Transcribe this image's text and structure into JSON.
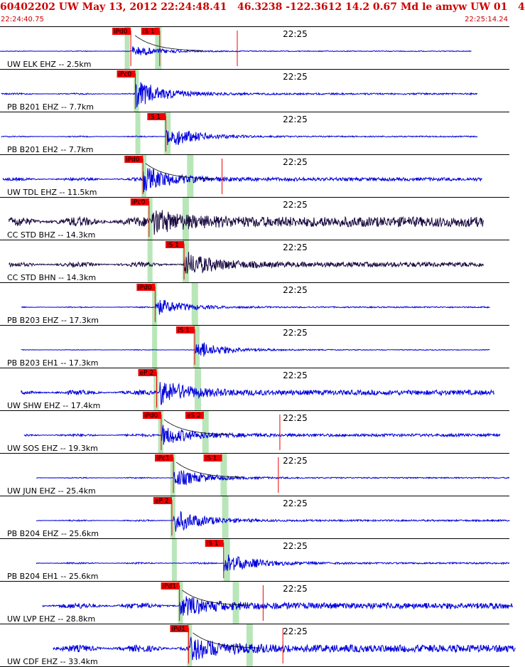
{
  "header": {
    "title": "60402202 UW May 13, 2012 22:24:48.41   46.3238 -122.3612 14.2 0.67 Md le amyw UW 01   4",
    "time_start": "22:24:40.75",
    "time_end": "22:25:14.24"
  },
  "colors": {
    "title": "#cc0000",
    "trace": "#0000dd",
    "trace_dark": "#1a0a40",
    "pick_box": "#ee0000",
    "window": "#b8e6b8",
    "separator": "#000000",
    "decay": "#000000"
  },
  "chart_data": {
    "type": "seismogram",
    "time_label": "22:25",
    "traces": [
      {
        "label": "UW ELK EHZ -- 2.5km",
        "dark": false,
        "trace_start_s": 0.0,
        "trace_end_s": 31.0,
        "p_window_s": 8.2,
        "s_window_s": 10.2,
        "wave_start_s": 8.7,
        "amplitude": 0.25,
        "background": 0.02,
        "picks": [
          {
            "label": "iPd0",
            "time_s": 8.6
          },
          {
            "label": "iS 1",
            "time_s": 10.5
          }
        ],
        "vertical_lines": [
          8.6,
          10.5,
          15.6
        ],
        "decay_curve": true
      },
      {
        "label": "PB B201 EHZ -- 7.7km",
        "dark": false,
        "trace_start_s": 0.1,
        "trace_end_s": 31.4,
        "p_window_s": 8.8,
        "s_window_s": null,
        "wave_start_s": 8.9,
        "amplitude": 0.6,
        "background": 0.04,
        "picks": [
          {
            "label": "iPc0",
            "time_s": 8.9
          }
        ],
        "vertical_lines": [
          8.9
        ],
        "decay_curve": false
      },
      {
        "label": "PB B201 EH2 -- 7.7km",
        "dark": false,
        "trace_start_s": 0.1,
        "trace_end_s": 31.4,
        "p_window_s": 8.9,
        "s_window_s": 10.8,
        "wave_start_s": 10.9,
        "amplitude": 0.55,
        "background": 0.03,
        "picks": [
          {
            "label": "iS 1",
            "time_s": 10.9
          }
        ],
        "vertical_lines": [
          10.9
        ],
        "decay_curve": false
      },
      {
        "label": "UW TDL EHZ -- 11.5km",
        "dark": false,
        "trace_start_s": 0.2,
        "trace_end_s": 31.7,
        "p_window_s": 9.3,
        "s_window_s": 12.3,
        "wave_start_s": 9.4,
        "amplitude": 0.55,
        "background": 0.08,
        "picks": [
          {
            "label": "iPd0",
            "time_s": 9.4
          }
        ],
        "vertical_lines": [
          9.4,
          14.6
        ],
        "decay_curve": true
      },
      {
        "label": "CC STD BHZ -- 14.3km",
        "dark": true,
        "trace_start_s": 0.6,
        "trace_end_s": 31.8,
        "p_window_s": 9.7,
        "s_window_s": 12.0,
        "wave_start_s": 10.0,
        "amplitude": 0.45,
        "background": 0.25,
        "picks": [
          {
            "label": "iPc0",
            "time_s": 9.8
          }
        ],
        "vertical_lines": [
          9.8
        ],
        "decay_curve": false
      },
      {
        "label": "CC STD BHN -- 14.3km",
        "dark": true,
        "trace_start_s": 0.6,
        "trace_end_s": 31.8,
        "p_window_s": 9.7,
        "s_window_s": 12.0,
        "wave_start_s": 12.1,
        "amplitude": 0.55,
        "background": 0.12,
        "picks": [
          {
            "label": "iS 1",
            "time_s": 12.1
          }
        ],
        "vertical_lines": [
          12.1
        ],
        "decay_curve": false
      },
      {
        "label": "PB B203 EHZ -- 17.3km",
        "dark": false,
        "trace_start_s": 1.4,
        "trace_end_s": 32.2,
        "p_window_s": 10.0,
        "s_window_s": 12.6,
        "wave_start_s": 10.2,
        "amplitude": 0.4,
        "background": 0.03,
        "picks": [
          {
            "label": "iPd0",
            "time_s": 10.2
          }
        ],
        "vertical_lines": [
          10.2
        ],
        "decay_curve": false
      },
      {
        "label": "PB B203 EH1 -- 17.3km",
        "dark": false,
        "trace_start_s": 1.4,
        "trace_end_s": 32.2,
        "p_window_s": 10.0,
        "s_window_s": 12.7,
        "wave_start_s": 12.8,
        "amplitude": 0.45,
        "background": 0.02,
        "picks": [
          {
            "label": "iS 1",
            "time_s": 12.8
          }
        ],
        "vertical_lines": [
          12.8
        ],
        "decay_curve": false
      },
      {
        "label": "UW SHW EHZ -- 17.4km",
        "dark": false,
        "trace_start_s": 1.4,
        "trace_end_s": 32.5,
        "p_window_s": 10.1,
        "s_window_s": 12.8,
        "wave_start_s": 10.5,
        "amplitude": 0.55,
        "background": 0.12,
        "picks": [
          {
            "label": "eP 2",
            "time_s": 10.3
          }
        ],
        "vertical_lines": [
          10.3
        ],
        "decay_curve": false
      },
      {
        "label": "UW SOS EHZ -- 19.3km",
        "dark": false,
        "trace_start_s": 1.6,
        "trace_end_s": 32.9,
        "p_window_s": 10.4,
        "s_window_s": 13.3,
        "wave_start_s": 10.6,
        "amplitude": 0.45,
        "background": 0.07,
        "picks": [
          {
            "label": "iPd0",
            "time_s": 10.6
          },
          {
            "label": "eS 2",
            "time_s": 13.4
          }
        ],
        "vertical_lines": [
          10.6,
          18.4
        ],
        "decay_curve": true
      },
      {
        "label": "UW JUN EHZ -- 25.4km",
        "dark": false,
        "trace_start_s": 2.4,
        "trace_end_s": 33.5,
        "p_window_s": 11.2,
        "s_window_s": 14.5,
        "wave_start_s": 11.4,
        "amplitude": 0.45,
        "background": 0.03,
        "picks": [
          {
            "label": "iPc1",
            "time_s": 11.4
          },
          {
            "label": "iS 1",
            "time_s": 14.6
          }
        ],
        "vertical_lines": [
          11.4,
          18.3
        ],
        "decay_curve": true
      },
      {
        "label": "PB B204 EHZ -- 25.6km",
        "dark": false,
        "trace_start_s": 2.4,
        "trace_end_s": 33.5,
        "p_window_s": 11.2,
        "s_window_s": 14.6,
        "wave_start_s": 11.4,
        "amplitude": 0.55,
        "background": 0.04,
        "picks": [
          {
            "label": "eP 2",
            "time_s": 11.3
          }
        ],
        "vertical_lines": [
          11.3
        ],
        "decay_curve": false
      },
      {
        "label": "PB B204 EH1 -- 25.6km",
        "dark": false,
        "trace_start_s": 2.4,
        "trace_end_s": 33.5,
        "p_window_s": 11.3,
        "s_window_s": 14.7,
        "wave_start_s": 14.7,
        "amplitude": 0.5,
        "background": 0.04,
        "picks": [
          {
            "label": "iS 1",
            "time_s": 14.7
          }
        ],
        "vertical_lines": [
          14.7
        ],
        "decay_curve": false
      },
      {
        "label": "UW LVP EHZ -- 28.8km",
        "dark": false,
        "trace_start_s": 2.8,
        "trace_end_s": 33.7,
        "p_window_s": 11.7,
        "s_window_s": 15.3,
        "wave_start_s": 11.8,
        "amplitude": 0.45,
        "background": 0.15,
        "picks": [
          {
            "label": "iPd1",
            "time_s": 11.8
          }
        ],
        "vertical_lines": [
          11.8,
          17.3
        ],
        "decay_curve": true
      },
      {
        "label": "UW CDF EHZ -- 33.4km",
        "dark": false,
        "trace_start_s": 3.5,
        "trace_end_s": 33.9,
        "p_window_s": 12.3,
        "s_window_s": 16.2,
        "wave_start_s": 12.5,
        "amplitude": 0.5,
        "background": 0.18,
        "picks": [
          {
            "label": "iPd1",
            "time_s": 12.4
          }
        ],
        "vertical_lines": [
          12.4,
          18.6
        ],
        "decay_curve": true
      }
    ]
  }
}
